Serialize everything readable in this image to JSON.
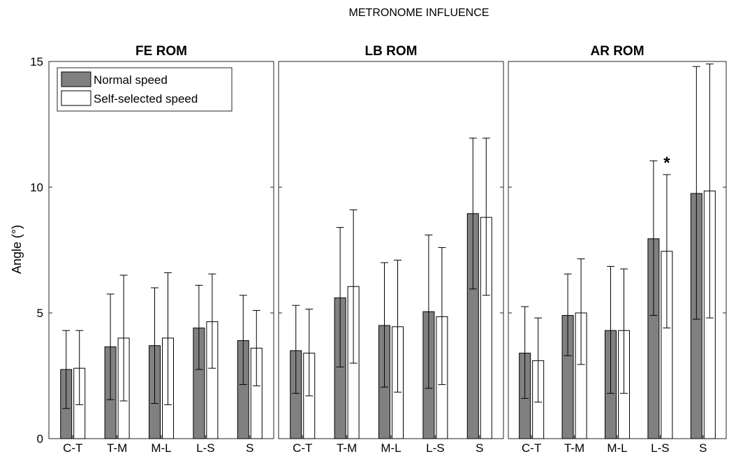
{
  "chart_data": {
    "type": "bar",
    "title": "METRONOME INFLUENCE",
    "ylabel": "Angle (°)",
    "ylim": [
      0,
      15
    ],
    "yticks": [
      0,
      5,
      10,
      15
    ],
    "categories": [
      "C-T",
      "T-M",
      "M-L",
      "L-S",
      "S"
    ],
    "legend": {
      "placement": "top-left",
      "entries": [
        {
          "name": "Normal speed",
          "color": "#808080"
        },
        {
          "name": "Self-selected speed",
          "color": "#ffffff"
        }
      ]
    },
    "panels": [
      {
        "title": "FE ROM",
        "series": [
          {
            "name": "Normal speed",
            "values": [
              2.75,
              3.65,
              3.7,
              4.4,
              3.9
            ],
            "err_low": [
              1.2,
              1.55,
              1.4,
              2.75,
              2.15
            ],
            "err_high": [
              4.3,
              5.75,
              6.0,
              6.1,
              5.7
            ]
          },
          {
            "name": "Self-selected speed",
            "values": [
              2.8,
              4.0,
              4.0,
              4.65,
              3.6
            ],
            "err_low": [
              1.35,
              1.5,
              1.35,
              2.8,
              2.1
            ],
            "err_high": [
              4.3,
              6.5,
              6.6,
              6.55,
              5.1
            ]
          }
        ]
      },
      {
        "title": "LB ROM",
        "series": [
          {
            "name": "Normal speed",
            "values": [
              3.5,
              5.6,
              4.5,
              5.05,
              8.95
            ],
            "err_low": [
              1.8,
              2.85,
              2.05,
              2.0,
              5.95
            ],
            "err_high": [
              5.3,
              8.4,
              7.0,
              8.1,
              11.95
            ]
          },
          {
            "name": "Self-selected speed",
            "values": [
              3.4,
              6.05,
              4.45,
              4.85,
              8.8
            ],
            "err_low": [
              1.7,
              3.0,
              1.85,
              2.15,
              5.7
            ],
            "err_high": [
              5.15,
              9.1,
              7.1,
              7.6,
              11.95
            ]
          }
        ]
      },
      {
        "title": "AR ROM",
        "series": [
          {
            "name": "Normal speed",
            "values": [
              3.4,
              4.9,
              4.3,
              7.95,
              9.75
            ],
            "err_low": [
              1.6,
              3.3,
              1.8,
              4.9,
              4.75
            ],
            "err_high": [
              5.25,
              6.55,
              6.85,
              11.05,
              14.8
            ]
          },
          {
            "name": "Self-selected speed",
            "values": [
              3.1,
              5.0,
              4.3,
              7.45,
              9.85
            ],
            "err_low": [
              1.45,
              2.95,
              1.8,
              4.4,
              4.8
            ],
            "err_high": [
              4.8,
              7.15,
              6.75,
              10.5,
              14.9
            ]
          }
        ],
        "annotations": [
          {
            "category": "L-S",
            "text": "*"
          }
        ]
      }
    ]
  }
}
